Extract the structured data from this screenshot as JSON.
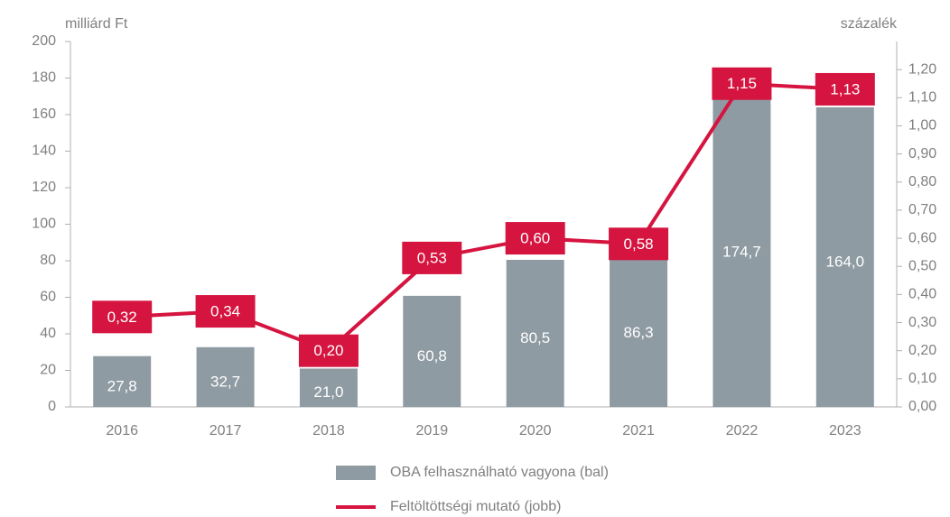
{
  "chart_data": {
    "type": "combo",
    "y_label": "milliárd Ft",
    "y2_label": "százalék",
    "categories": [
      "2016",
      "2017",
      "2018",
      "2019",
      "2020",
      "2021",
      "2022",
      "2023"
    ],
    "series": [
      {
        "name": "OBA felhasználható vagyona (bal)",
        "type": "bar",
        "color": "#8f9ba3",
        "values": [
          27.8,
          32.7,
          21.0,
          60.8,
          80.5,
          86.3,
          174.7,
          164.0
        ],
        "value_labels": [
          "27,8",
          "32,7",
          "21,0",
          "60,8",
          "80,5",
          "86,3",
          "174,7",
          "164,0"
        ]
      },
      {
        "name": "Feltöltöttségi mutató (jobb)",
        "type": "line",
        "axis": "y2",
        "color": "#d5143f",
        "values": [
          0.32,
          0.34,
          0.2,
          0.53,
          0.6,
          0.58,
          1.15,
          1.13
        ],
        "value_labels": [
          "0,32",
          "0,34",
          "0,20",
          "0,53",
          "0,60",
          "0,58",
          "1,15",
          "1,13"
        ]
      }
    ],
    "ylim": [
      0,
      200
    ],
    "yticks": [
      0,
      20,
      40,
      60,
      80,
      100,
      120,
      140,
      160,
      180,
      200
    ],
    "y2lim": [
      0,
      1.3
    ],
    "y2ticks": [
      {
        "value": 0,
        "label": "0,00"
      },
      {
        "value": 0.1,
        "label": "0,10"
      },
      {
        "value": 0.2,
        "label": "0,20"
      },
      {
        "value": 0.3,
        "label": "0,30"
      },
      {
        "value": 0.4,
        "label": "0,40"
      },
      {
        "value": 0.5,
        "label": "0,50"
      },
      {
        "value": 0.6,
        "label": "0,60"
      },
      {
        "value": 0.7,
        "label": "0,70"
      },
      {
        "value": 0.8,
        "label": "0,80"
      },
      {
        "value": 0.9,
        "label": "0,90"
      },
      {
        "value": 1.0,
        "label": "1,00"
      },
      {
        "value": 1.1,
        "label": "1,10"
      },
      {
        "value": 1.2,
        "label": "1,20"
      }
    ],
    "grid": false,
    "legend": "bottom"
  }
}
